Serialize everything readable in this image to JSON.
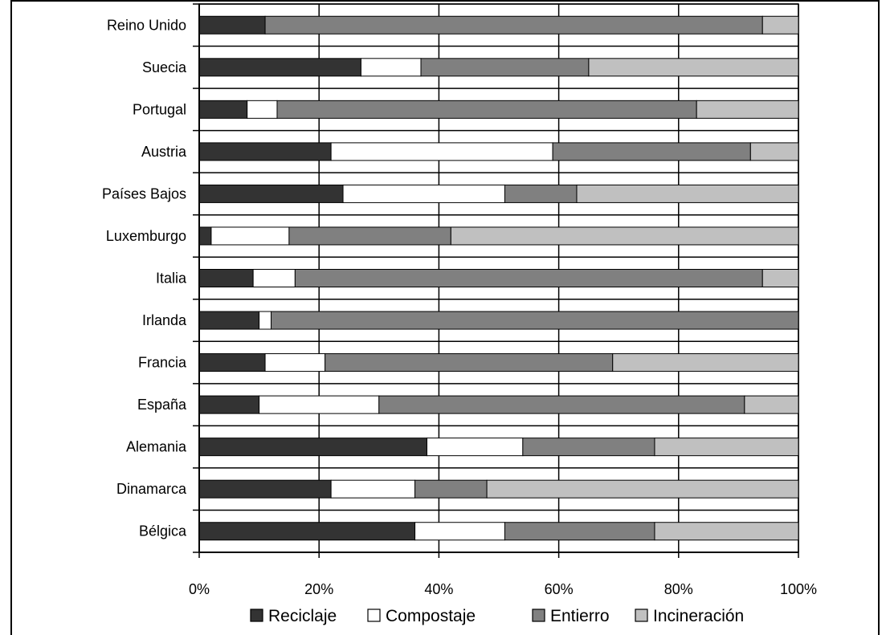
{
  "chart_data": {
    "type": "bar",
    "orientation": "horizontal",
    "stacked": "percent",
    "title": "",
    "xlabel": "",
    "ylabel": "",
    "xlim": [
      0,
      100
    ],
    "grid": true,
    "legend_position": "bottom",
    "x_tick_labels": [
      "0%",
      "20%",
      "40%",
      "60%",
      "80%",
      "100%"
    ],
    "categories": [
      "Reino Unido",
      "Suecia",
      "Portugal",
      "Austria",
      "Países Bajos",
      "Luxemburgo",
      "Italia",
      "Irlanda",
      "Francia",
      "España",
      "Alemania",
      "Dinamarca",
      "Bélgica"
    ],
    "series": [
      {
        "name": "Reciclaje",
        "color": "#333333",
        "values": [
          11,
          27,
          8,
          22,
          24,
          2,
          9,
          10,
          11,
          10,
          38,
          22,
          36
        ]
      },
      {
        "name": "Compostaje",
        "color": "#ffffff",
        "values": [
          0,
          10,
          5,
          37,
          27,
          13,
          7,
          2,
          10,
          20,
          16,
          14,
          15
        ]
      },
      {
        "name": "Entierro",
        "color": "#808080",
        "values": [
          83,
          28,
          70,
          33,
          12,
          27,
          78,
          88,
          48,
          61,
          22,
          12,
          25
        ]
      },
      {
        "name": "Incineración",
        "color": "#c0c0c0",
        "values": [
          6,
          35,
          17,
          8,
          37,
          58,
          6,
          0,
          31,
          9,
          24,
          52,
          24
        ]
      }
    ]
  }
}
